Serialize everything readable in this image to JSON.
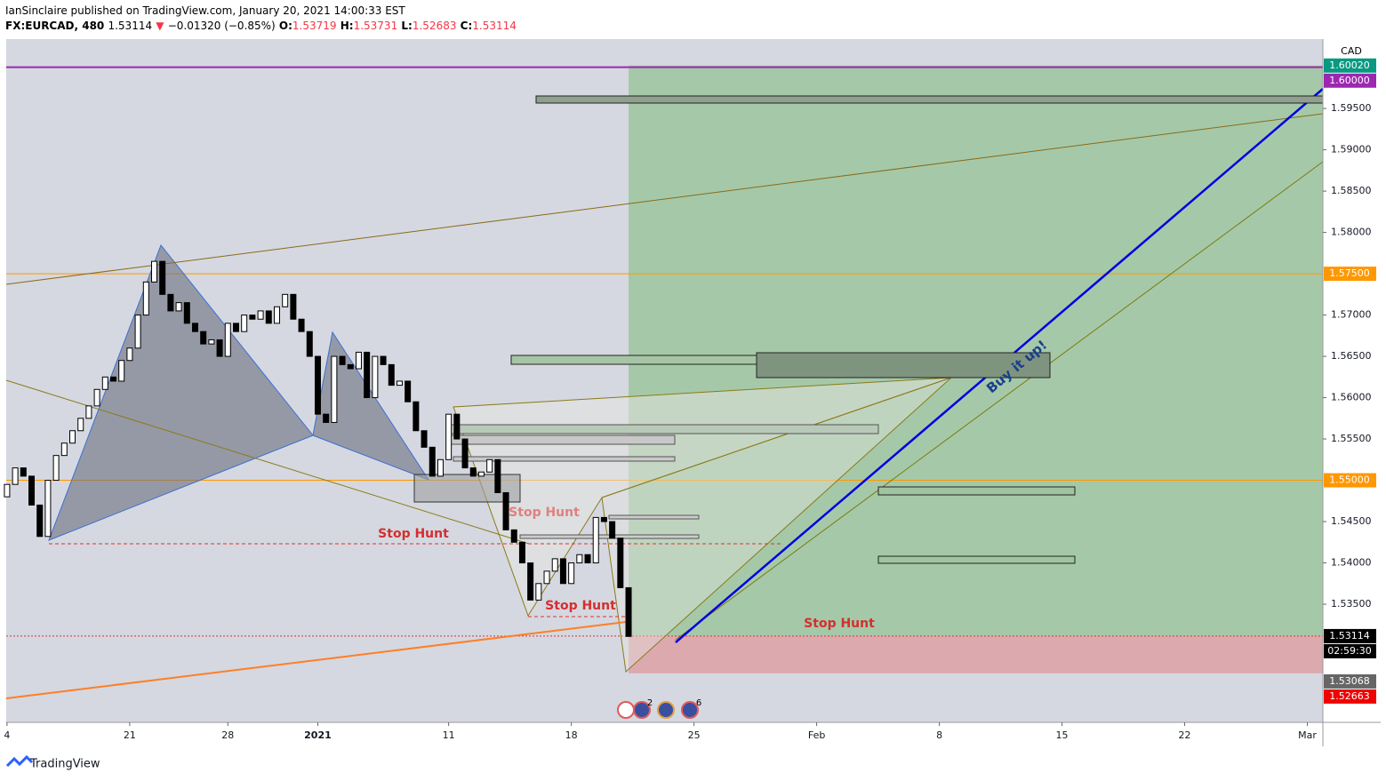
{
  "header": {
    "line1": "IanSinclaire published on TradingView.com, January 20, 2021 14:00:33 EST",
    "symbol": "FX:EURCAD, 480",
    "last": "1.53114",
    "arrow": "▼",
    "change": "−0.01320 (−0.85%)",
    "o_label": "O:",
    "o": "1.53719",
    "h_label": "H:",
    "h": "1.53731",
    "l_label": "L:",
    "l": "1.52683",
    "c_label": "C:",
    "c": "1.53114"
  },
  "footer": {
    "brand": "TradingView"
  },
  "chart_data": {
    "type": "candlestick",
    "axis_title": "CAD",
    "ylim": [
      1.5207,
      1.6034
    ],
    "yticks": [
      {
        "value": 1.595,
        "label": "1.59500"
      },
      {
        "value": 1.59,
        "label": "1.59000"
      },
      {
        "value": 1.585,
        "label": "1.58500"
      },
      {
        "value": 1.58,
        "label": "1.58000"
      },
      {
        "value": 1.57,
        "label": "1.57000"
      },
      {
        "value": 1.565,
        "label": "1.56500"
      },
      {
        "value": 1.56,
        "label": "1.56000"
      },
      {
        "value": 1.555,
        "label": "1.55500"
      },
      {
        "value": 1.545,
        "label": "1.54500"
      },
      {
        "value": 1.54,
        "label": "1.54000"
      },
      {
        "value": 1.535,
        "label": "1.53500"
      }
    ],
    "xlim": [
      -0.1,
      160.9
    ],
    "xticks": [
      {
        "value": 0,
        "label": "4"
      },
      {
        "value": 15,
        "label": "21"
      },
      {
        "value": 27,
        "label": "28"
      },
      {
        "value": 38,
        "label": "2021"
      },
      {
        "value": 54,
        "label": "11"
      },
      {
        "value": 69,
        "label": "18"
      },
      {
        "value": 84,
        "label": "25"
      },
      {
        "value": 99,
        "label": "Feb"
      },
      {
        "value": 114,
        "label": "8"
      },
      {
        "value": 129,
        "label": "15"
      },
      {
        "value": 144,
        "label": "22"
      },
      {
        "value": 159,
        "label": "Mar"
      }
    ],
    "up_color": "#ffffff",
    "down_color": "#000000",
    "open": [
      1.548,
      1.5495,
      1.5515,
      1.5505,
      1.547,
      1.5432,
      1.55,
      1.553,
      1.5545,
      1.556,
      1.5575,
      1.559,
      1.561,
      1.5625,
      1.562,
      1.5645,
      1.566,
      1.57,
      1.574,
      1.5765,
      1.5725,
      1.5705,
      1.5715,
      1.569,
      1.568,
      1.5665,
      1.567,
      1.565,
      1.569,
      1.568,
      1.57,
      1.5695,
      1.5705,
      1.569,
      1.571,
      1.5725,
      1.5695,
      1.568,
      1.565,
      1.558,
      1.557,
      1.565,
      1.564,
      1.5635,
      1.5655,
      1.56,
      1.565,
      1.564,
      1.5615,
      1.562,
      1.5595,
      1.556,
      1.554,
      1.5505,
      1.5525,
      1.558,
      1.555,
      1.5515,
      1.5505,
      1.551,
      1.5525,
      1.5485,
      1.544,
      1.5425,
      1.54,
      1.5355,
      1.5375,
      1.539,
      1.5405,
      1.5375,
      1.54,
      1.541,
      1.54,
      1.5455,
      1.545,
      1.543,
      1.537
    ],
    "close": [
      1.5495,
      1.5515,
      1.5505,
      1.547,
      1.5432,
      1.55,
      1.553,
      1.5545,
      1.556,
      1.5575,
      1.559,
      1.561,
      1.5625,
      1.562,
      1.5645,
      1.566,
      1.57,
      1.574,
      1.5765,
      1.5725,
      1.5705,
      1.5715,
      1.569,
      1.568,
      1.5665,
      1.567,
      1.565,
      1.569,
      1.568,
      1.57,
      1.5695,
      1.5705,
      1.569,
      1.571,
      1.5725,
      1.5695,
      1.568,
      1.565,
      1.558,
      1.557,
      1.565,
      1.564,
      1.5635,
      1.5655,
      1.56,
      1.565,
      1.564,
      1.5615,
      1.562,
      1.5595,
      1.556,
      1.554,
      1.5505,
      1.5525,
      1.558,
      1.555,
      1.5515,
      1.5505,
      1.551,
      1.5525,
      1.5485,
      1.544,
      1.5425,
      1.54,
      1.5355,
      1.5375,
      1.539,
      1.5405,
      1.5375,
      1.54,
      1.541,
      1.54,
      1.5455,
      1.545,
      1.543,
      1.537,
      1.5311
    ],
    "price_labels": [
      {
        "value": 1.6002,
        "label": "1.60020",
        "color": "#089981"
      },
      {
        "value": 1.6,
        "label": "1.60000",
        "color": "#9c27b0"
      },
      {
        "value": 1.575,
        "label": "1.57500",
        "color": "#ff9800"
      },
      {
        "value": 1.55,
        "label": "1.55000",
        "color": "#ff9800"
      },
      {
        "value": 1.53114,
        "label": "1.53114",
        "color": "#000000"
      },
      {
        "value": 1.53068,
        "label": "1.53068",
        "color": "#666666"
      },
      {
        "value": 1.52663,
        "label": "1.52663",
        "color": "#f00000"
      }
    ],
    "countdown": "02:59:30",
    "annotations": [
      "Stop Hunt",
      "Stop Hunt",
      "Stop Hunt",
      "Stop Hunt",
      "Buy it up!"
    ],
    "event_counts": [
      "2",
      "6"
    ]
  }
}
